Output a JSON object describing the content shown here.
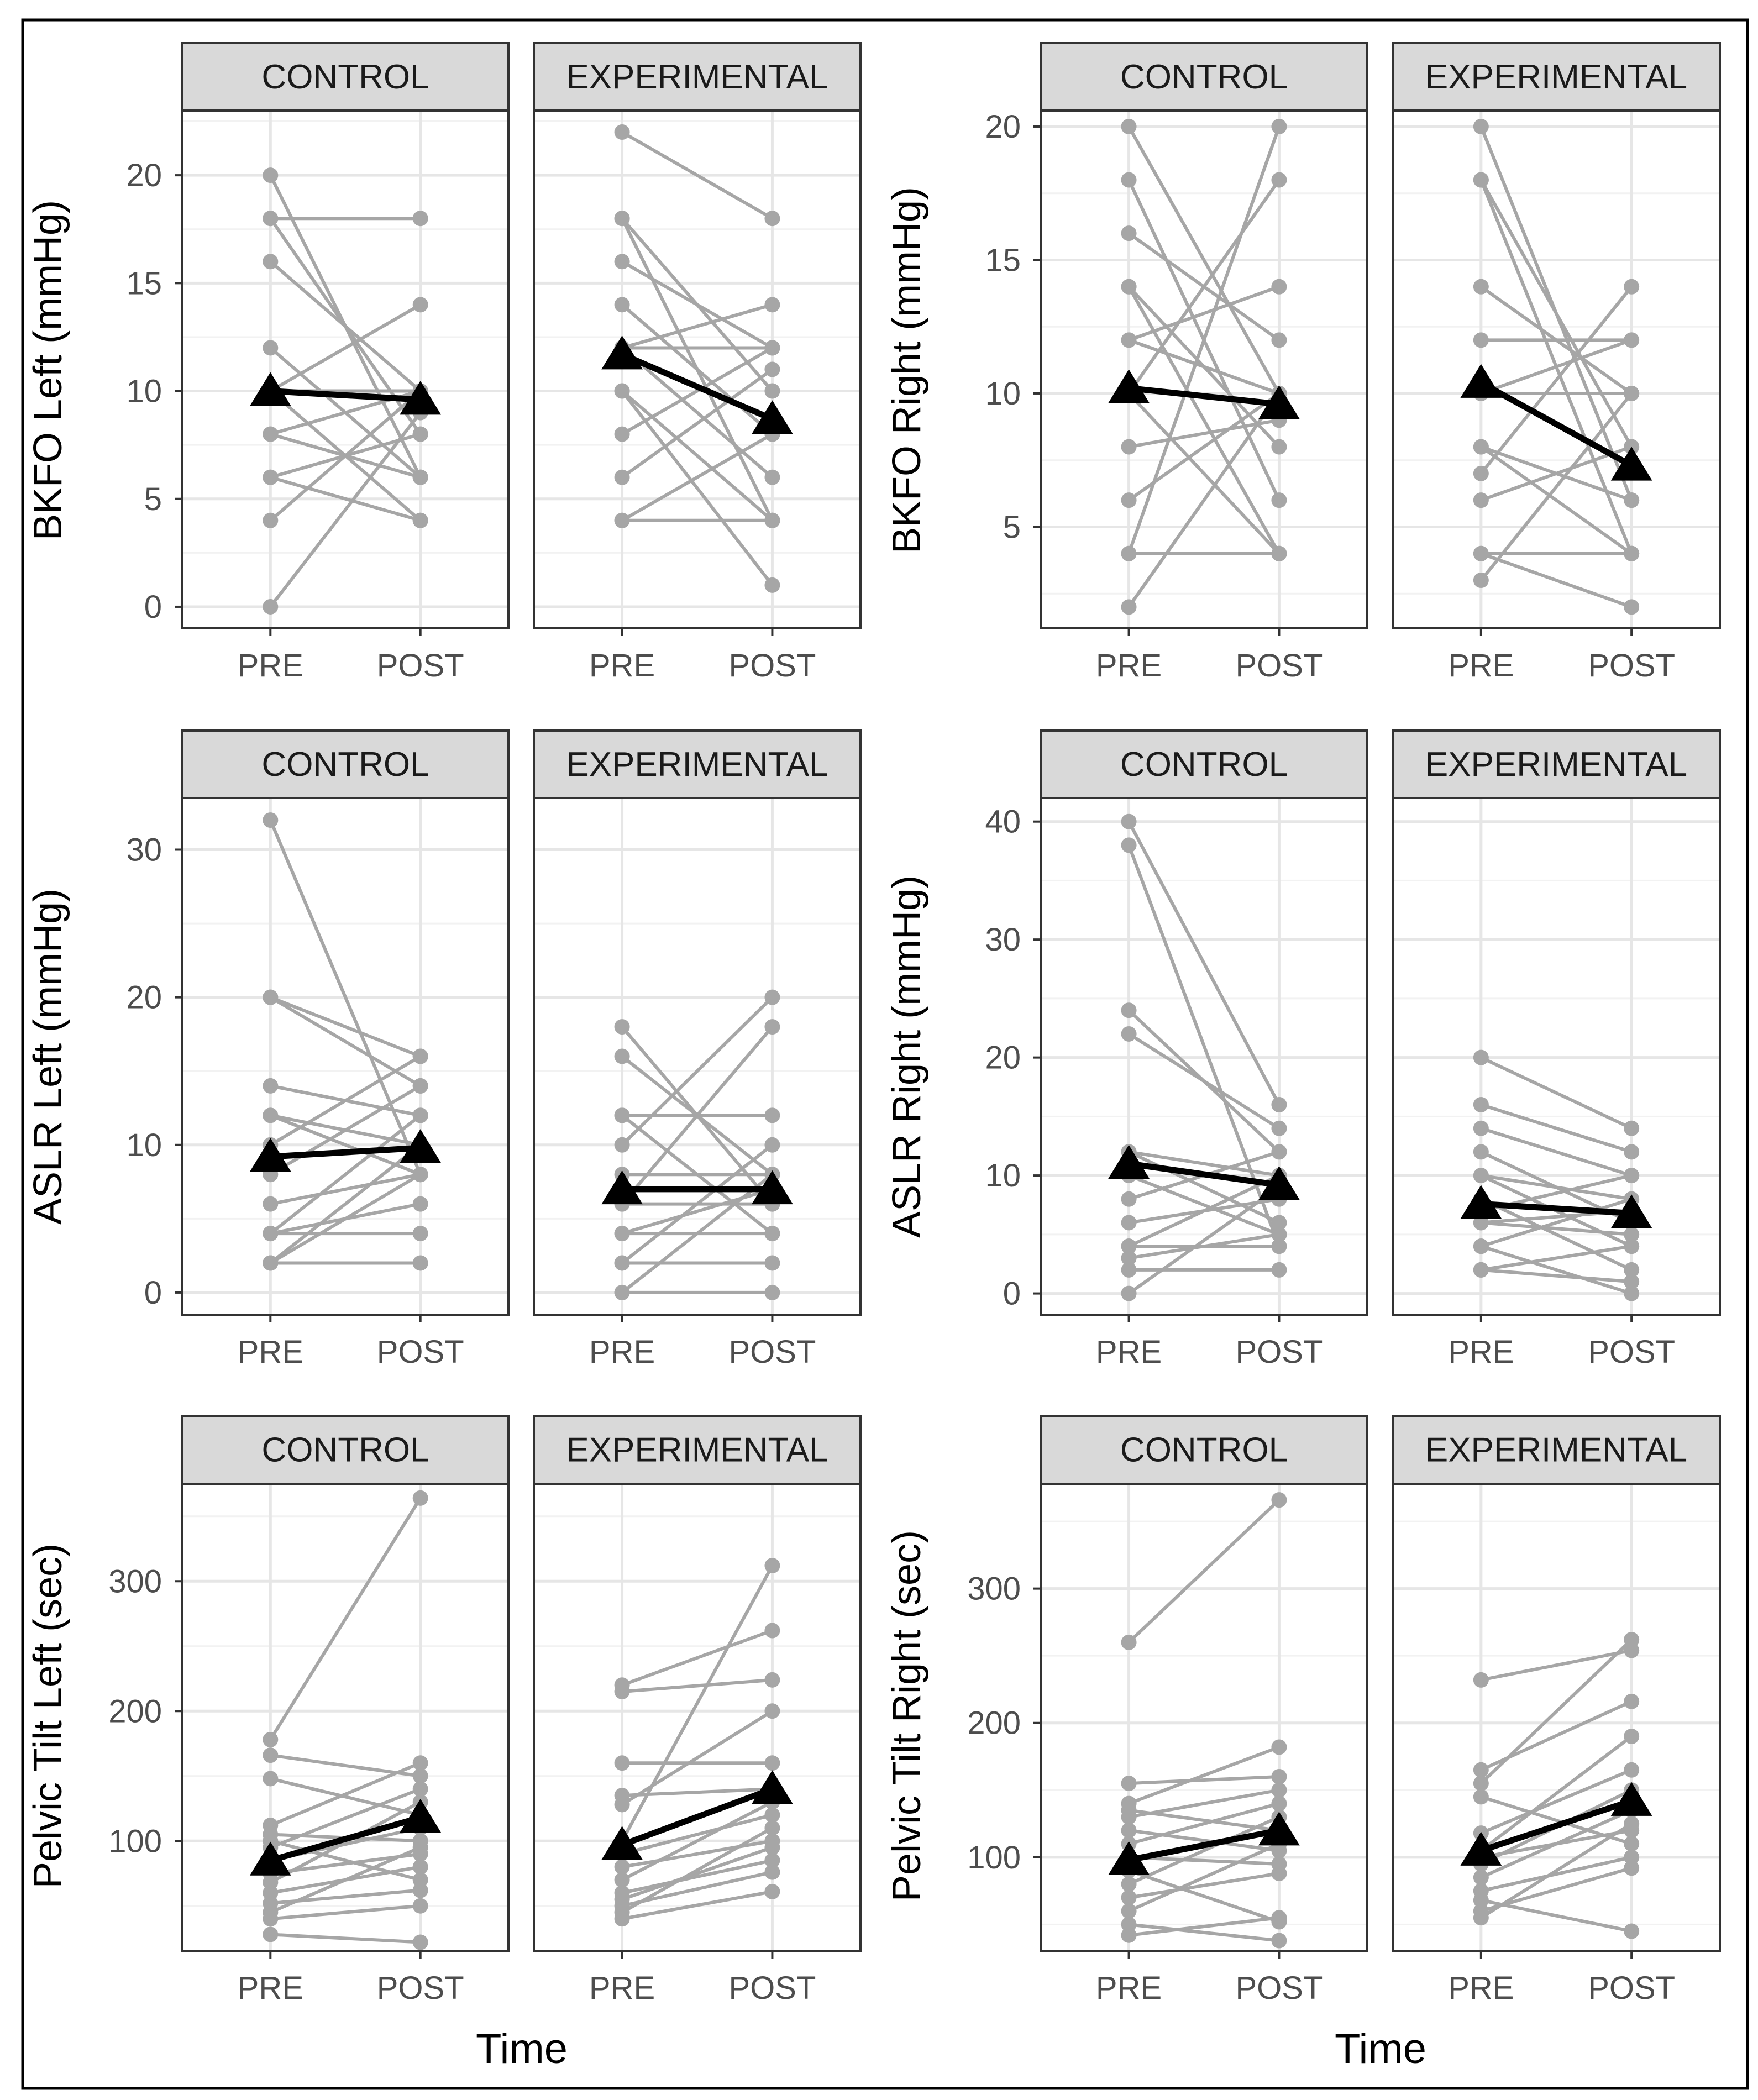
{
  "figure": {
    "xlabel": "Time",
    "colors": {
      "individual": "#a6a6a6",
      "mean": "#000000",
      "grid_major": "#e6e6e6",
      "grid_minor": "#f2f2f2",
      "strip_fill": "#d9d9d9",
      "panel_border": "#333333",
      "frame": "#000000"
    }
  },
  "chart_data": [
    {
      "type": "line",
      "ylabel": "BKFO Left (mmHg)",
      "ylim": [
        -1,
        23
      ],
      "yticks": [
        0,
        5,
        10,
        15,
        20
      ],
      "ytick_labels": [
        "0",
        "5",
        "10",
        "15",
        "20"
      ],
      "ytick_minor": [
        2.5,
        7.5,
        12.5,
        17.5,
        22.5
      ],
      "x": [
        "PRE",
        "POST"
      ],
      "x_labels": [
        "PRE",
        "POST"
      ],
      "facets": [
        {
          "name": "CONTROL",
          "subjects": [
            [
              20,
              6
            ],
            [
              18,
              18
            ],
            [
              18,
              8
            ],
            [
              16,
              10
            ],
            [
              12,
              6
            ],
            [
              10,
              4
            ],
            [
              10,
              14
            ],
            [
              10,
              10
            ],
            [
              8,
              6
            ],
            [
              8,
              10
            ],
            [
              6,
              4
            ],
            [
              6,
              8
            ],
            [
              4,
              10
            ],
            [
              0,
              9
            ]
          ],
          "mean": [
            10,
            9.6
          ]
        },
        {
          "name": "EXPERIMENTAL",
          "subjects": [
            [
              22,
              18
            ],
            [
              18,
              10
            ],
            [
              18,
              4
            ],
            [
              16,
              12
            ],
            [
              14,
              8
            ],
            [
              12,
              14
            ],
            [
              12,
              6
            ],
            [
              12,
              12
            ],
            [
              10,
              4
            ],
            [
              10,
              1
            ],
            [
              8,
              12
            ],
            [
              6,
              11
            ],
            [
              4,
              4
            ],
            [
              4,
              8
            ]
          ],
          "mean": [
            11.7,
            8.7
          ]
        }
      ]
    },
    {
      "type": "line",
      "ylabel": "BKFO Right (mmHg)",
      "ylim": [
        1.2,
        20.6
      ],
      "yticks": [
        5,
        10,
        15,
        20
      ],
      "ytick_labels": [
        "5",
        "10",
        "15",
        "20"
      ],
      "ytick_minor": [
        2.5,
        7.5,
        12.5,
        17.5
      ],
      "x": [
        "PRE",
        "POST"
      ],
      "x_labels": [
        "PRE",
        "POST"
      ],
      "facets": [
        {
          "name": "CONTROL",
          "subjects": [
            [
              20,
              10
            ],
            [
              18,
              6
            ],
            [
              16,
              12
            ],
            [
              14,
              4
            ],
            [
              14,
              8
            ],
            [
              12,
              14
            ],
            [
              12,
              10
            ],
            [
              10,
              18
            ],
            [
              10,
              4
            ],
            [
              8,
              9
            ],
            [
              6,
              10
            ],
            [
              4,
              20
            ],
            [
              4,
              4
            ],
            [
              2,
              10
            ]
          ],
          "mean": [
            10.2,
            9.6
          ]
        },
        {
          "name": "EXPERIMENTAL",
          "subjects": [
            [
              20,
              6
            ],
            [
              18,
              4
            ],
            [
              18,
              8
            ],
            [
              14,
              10
            ],
            [
              12,
              12
            ],
            [
              10,
              12
            ],
            [
              10,
              10
            ],
            [
              8,
              4
            ],
            [
              8,
              6
            ],
            [
              7,
              14
            ],
            [
              6,
              8
            ],
            [
              4,
              2
            ],
            [
              4,
              4
            ],
            [
              3,
              10
            ]
          ],
          "mean": [
            10.4,
            7.3
          ]
        }
      ]
    },
    {
      "type": "line",
      "ylabel": "ASLR Left (mmHg)",
      "ylim": [
        -1.5,
        33.5
      ],
      "yticks": [
        0,
        10,
        20,
        30
      ],
      "ytick_labels": [
        "0",
        "10",
        "20",
        "30"
      ],
      "ytick_minor": [
        5,
        15,
        25
      ],
      "x": [
        "PRE",
        "POST"
      ],
      "x_labels": [
        "PRE",
        "POST"
      ],
      "facets": [
        {
          "name": "CONTROL",
          "subjects": [
            [
              32,
              8
            ],
            [
              20,
              14
            ],
            [
              20,
              16
            ],
            [
              14,
              12
            ],
            [
              12,
              10
            ],
            [
              12,
              8
            ],
            [
              10,
              16
            ],
            [
              8,
              14
            ],
            [
              6,
              8
            ],
            [
              4,
              12
            ],
            [
              4,
              6
            ],
            [
              4,
              4
            ],
            [
              2,
              10
            ],
            [
              2,
              2
            ],
            [
              2,
              8
            ]
          ],
          "mean": [
            9.2,
            9.8
          ]
        },
        {
          "name": "EXPERIMENTAL",
          "subjects": [
            [
              18,
              6
            ],
            [
              16,
              8
            ],
            [
              12,
              4
            ],
            [
              12,
              12
            ],
            [
              10,
              20
            ],
            [
              8,
              8
            ],
            [
              6,
              18
            ],
            [
              6,
              6
            ],
            [
              4,
              4
            ],
            [
              4,
              7
            ],
            [
              2,
              2
            ],
            [
              2,
              10
            ],
            [
              0,
              0
            ],
            [
              0,
              8
            ]
          ],
          "mean": [
            7,
            7
          ]
        }
      ]
    },
    {
      "type": "line",
      "ylabel": "ASLR Right (mmHg)",
      "ylim": [
        -1.8,
        42
      ],
      "yticks": [
        0,
        10,
        20,
        30,
        40
      ],
      "ytick_labels": [
        "0",
        "10",
        "20",
        "30",
        "40"
      ],
      "ytick_minor": [
        5,
        15,
        25,
        35
      ],
      "x": [
        "PRE",
        "POST"
      ],
      "x_labels": [
        "PRE",
        "POST"
      ],
      "facets": [
        {
          "name": "CONTROL",
          "subjects": [
            [
              40,
              16
            ],
            [
              38,
              4
            ],
            [
              24,
              12
            ],
            [
              22,
              14
            ],
            [
              12,
              10
            ],
            [
              12,
              6
            ],
            [
              10,
              5
            ],
            [
              8,
              12
            ],
            [
              6,
              8
            ],
            [
              4,
              4
            ],
            [
              4,
              10
            ],
            [
              3,
              5
            ],
            [
              2,
              2
            ],
            [
              0,
              9
            ]
          ],
          "mean": [
            11,
            9.2
          ]
        },
        {
          "name": "EXPERIMENTAL",
          "subjects": [
            [
              20,
              14
            ],
            [
              16,
              12
            ],
            [
              14,
              10
            ],
            [
              12,
              6
            ],
            [
              10,
              8
            ],
            [
              10,
              4
            ],
            [
              8,
              2
            ],
            [
              7,
              10
            ],
            [
              6,
              5
            ],
            [
              6,
              7
            ],
            [
              4,
              0
            ],
            [
              4,
              8
            ],
            [
              2,
              1
            ],
            [
              2,
              4
            ]
          ],
          "mean": [
            7.6,
            6.8
          ]
        }
      ]
    },
    {
      "type": "line",
      "ylabel": "Pelvic Tilt Left (sec)",
      "ylim": [
        15,
        375
      ],
      "yticks": [
        100,
        200,
        300
      ],
      "ytick_labels": [
        "100",
        "200",
        "300"
      ],
      "ytick_minor": [
        50,
        150,
        250,
        350
      ],
      "x": [
        "PRE",
        "POST"
      ],
      "x_labels": [
        "PRE",
        "POST"
      ],
      "facets": [
        {
          "name": "CONTROL",
          "subjects": [
            [
              178,
              364
            ],
            [
              166,
              150
            ],
            [
              148,
              120
            ],
            [
              112,
              160
            ],
            [
              105,
              100
            ],
            [
              100,
              70
            ],
            [
              95,
              140
            ],
            [
              85,
              110
            ],
            [
              75,
              90
            ],
            [
              68,
              130
            ],
            [
              60,
              80
            ],
            [
              52,
              62
            ],
            [
              45,
              95
            ],
            [
              40,
              50
            ],
            [
              28,
              22
            ]
          ],
          "mean": [
            85,
            118
          ]
        },
        {
          "name": "EXPERIMENTAL",
          "subjects": [
            [
              220,
              262
            ],
            [
              215,
              224
            ],
            [
              160,
              160
            ],
            [
              135,
              140
            ],
            [
              128,
              200
            ],
            [
              100,
              312
            ],
            [
              90,
              120
            ],
            [
              80,
              100
            ],
            [
              70,
              130
            ],
            [
              60,
              85
            ],
            [
              55,
              95
            ],
            [
              50,
              76
            ],
            [
              45,
              110
            ],
            [
              40,
              61
            ]
          ],
          "mean": [
            97,
            140
          ]
        }
      ]
    },
    {
      "type": "line",
      "ylabel": "Pelvic Tilt Right (sec)",
      "ylim": [
        30,
        378
      ],
      "yticks": [
        100,
        200,
        300
      ],
      "ytick_labels": [
        "100",
        "200",
        "300"
      ],
      "ytick_minor": [
        50,
        150,
        250,
        350
      ],
      "x": [
        "PRE",
        "POST"
      ],
      "x_labels": [
        "PRE",
        "POST"
      ],
      "facets": [
        {
          "name": "CONTROL",
          "subjects": [
            [
              260,
              366
            ],
            [
              155,
              160
            ],
            [
              140,
              182
            ],
            [
              135,
              120
            ],
            [
              130,
              150
            ],
            [
              120,
              105
            ],
            [
              110,
              140
            ],
            [
              100,
              95
            ],
            [
              90,
              52
            ],
            [
              80,
              130
            ],
            [
              70,
              88
            ],
            [
              60,
              110
            ],
            [
              50,
              38
            ],
            [
              42,
              55
            ]
          ],
          "mean": [
            98,
            120
          ]
        },
        {
          "name": "EXPERIMENTAL",
          "subjects": [
            [
              232,
              254
            ],
            [
              165,
              216
            ],
            [
              155,
              262
            ],
            [
              145,
              110
            ],
            [
              118,
              165
            ],
            [
              105,
              190
            ],
            [
              100,
              120
            ],
            [
              95,
              150
            ],
            [
              85,
              135
            ],
            [
              75,
              100
            ],
            [
              68,
              45
            ],
            [
              60,
              92
            ],
            [
              55,
              125
            ]
          ],
          "mean": [
            105,
            142
          ]
        }
      ]
    }
  ]
}
